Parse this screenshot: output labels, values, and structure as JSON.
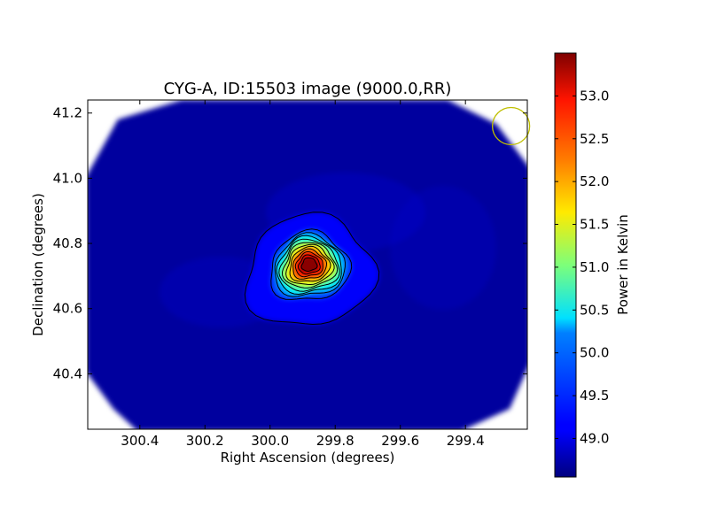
{
  "chart_data": {
    "type": "heatmap",
    "title": "CYG-A, ID:15503 image (9000.0,RR)",
    "xlabel": "Right Ascension (degrees)",
    "ylabel": "Declination (degrees)",
    "xlim": [
      300.56,
      299.21
    ],
    "ylim": [
      40.23,
      41.24
    ],
    "x_ticks": [
      300.4,
      300.2,
      300.0,
      299.8,
      299.6,
      299.4
    ],
    "x_tick_labels": [
      "300.4",
      "300.2",
      "300.0",
      "299.8",
      "299.6",
      "299.4"
    ],
    "y_ticks": [
      40.4,
      40.6,
      40.8,
      41.0,
      41.2
    ],
    "y_tick_labels": [
      "40.4",
      "40.6",
      "40.8",
      "41.0",
      "41.2"
    ],
    "peak": {
      "ra": 299.88,
      "dec": 40.735,
      "value": 53.45
    },
    "background_value": 48.7,
    "contour_count": 12,
    "beam_circle": {
      "ra": 299.26,
      "dec": 41.16,
      "color": "#bfbf00"
    },
    "colorbar": {
      "label": "Power in Kelvin",
      "range": [
        48.55,
        53.5
      ],
      "ticks": [
        49.0,
        49.5,
        50.0,
        50.5,
        51.0,
        51.5,
        52.0,
        52.5,
        53.0
      ],
      "tick_labels": [
        "49.0",
        "49.5",
        "50.0",
        "50.5",
        "51.0",
        "51.5",
        "52.0",
        "52.5",
        "53.0"
      ],
      "colormap": "jet"
    }
  }
}
